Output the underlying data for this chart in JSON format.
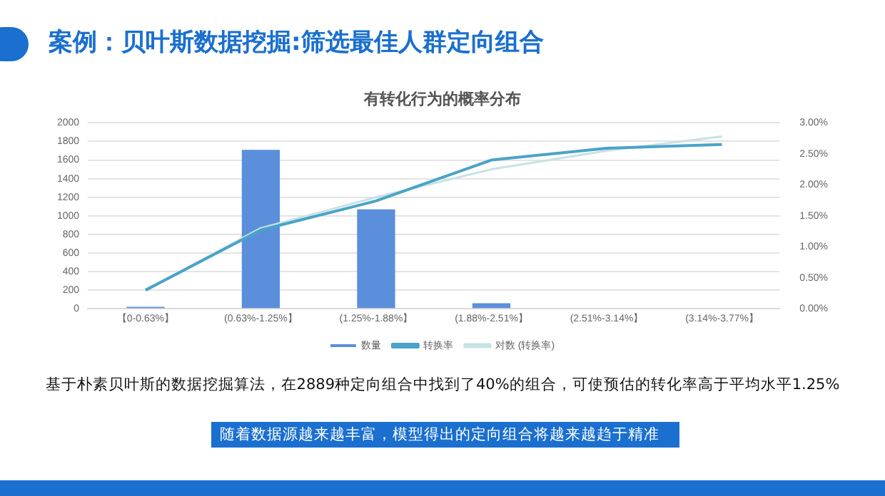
{
  "chart_data": {
    "type": "bar",
    "title": "案例：贝叶斯数据挖掘:筛选最佳人群定向组合",
    "subtitle": "有转化行为的概率分布",
    "categories": [
      "【0-0.63%】",
      "(0.63%-1.25%】",
      "(1.25%-1.88%】",
      "(1.88%-2.51%】",
      "(2.51%-3.14%】",
      "(3.14%-3.77%】"
    ],
    "series": [
      {
        "name": "数量",
        "color": "#5b8fdc",
        "values": [
          20,
          1710,
          1070,
          60,
          0,
          0
        ]
      },
      {
        "name": "转换率",
        "type": "line",
        "axis": "y2",
        "color": "#4aa3c8",
        "values": [
          0.3,
          1.27,
          1.74,
          2.4,
          2.59,
          2.65
        ]
      },
      {
        "name": "对数 (转换率)",
        "type": "line",
        "axis": "y2",
        "color": "#c8e2e4",
        "values": [
          0.3,
          1.3,
          1.8,
          2.25,
          2.55,
          2.78
        ]
      }
    ],
    "ylim": [
      0,
      2000
    ],
    "yticks": [
      0,
      200,
      400,
      600,
      800,
      1000,
      1200,
      1400,
      1600,
      1800,
      2000
    ],
    "y2lim": [
      0,
      3
    ],
    "y2ticks": [
      {
        "value": 0,
        "label": "0.00%"
      },
      {
        "value": 0.5,
        "label": "0.50%"
      },
      {
        "value": 1,
        "label": "1.00%"
      },
      {
        "value": 1.5,
        "label": "1.50%"
      },
      {
        "value": 2,
        "label": "2.00%"
      },
      {
        "value": 2.5,
        "label": "2.50%"
      },
      {
        "value": 3,
        "label": "3.00%"
      }
    ],
    "grid": "y",
    "legend": "bottom",
    "marker": "none",
    "line_style": "solid",
    "annotations": [
      "基于朴素贝叶斯的数据挖掘算法，在2889种定向组合中找到了40%的组合，可使预估的转化率高于平均水平1.25%",
      "随着数据源越来越丰富，模型得出的定向组合将越来越趋于精准"
    ]
  }
}
